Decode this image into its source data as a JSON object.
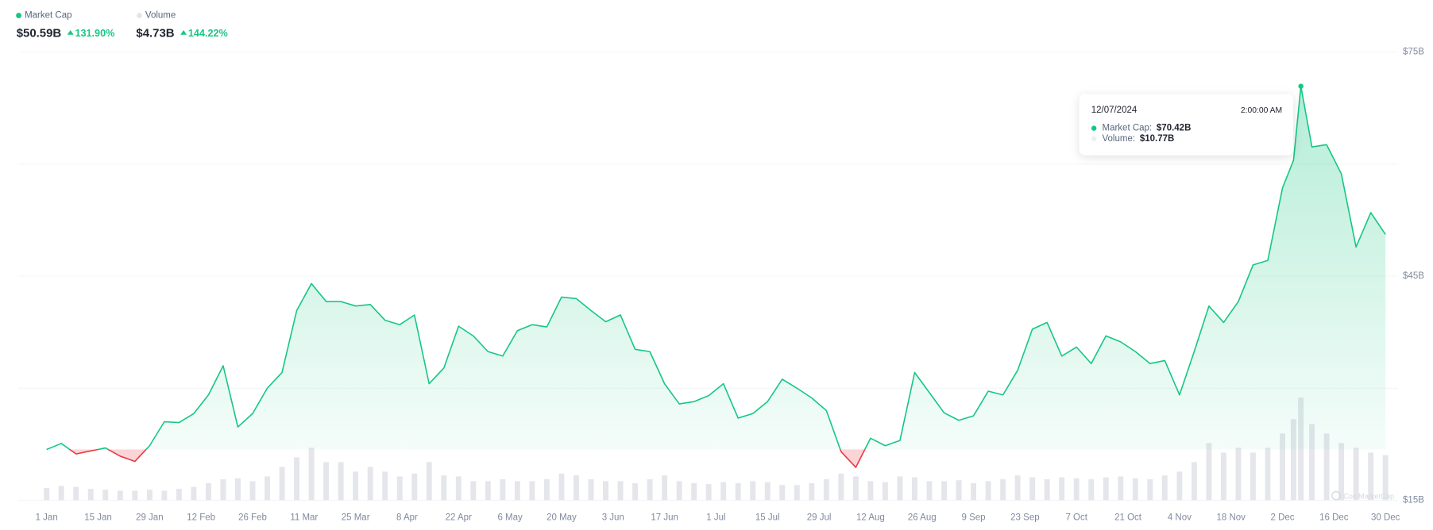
{
  "chart_data": {
    "type": "line",
    "summary": [
      {
        "value": "$50.59B",
        "change": "131.90%"
      },
      {
        "value": "$4.73B",
        "change": "144.22%"
      }
    ],
    "x": [
      "2024-01-01",
      "2024-01-05",
      "2024-01-09",
      "2024-01-13",
      "2024-01-17",
      "2024-01-21",
      "2024-01-25",
      "2024-01-29",
      "2024-02-02",
      "2024-02-06",
      "2024-02-10",
      "2024-02-14",
      "2024-02-18",
      "2024-02-22",
      "2024-02-26",
      "2024-03-01",
      "2024-03-05",
      "2024-03-09",
      "2024-03-13",
      "2024-03-17",
      "2024-03-21",
      "2024-03-25",
      "2024-03-29",
      "2024-04-02",
      "2024-04-06",
      "2024-04-10",
      "2024-04-14",
      "2024-04-18",
      "2024-04-22",
      "2024-04-26",
      "2024-04-30",
      "2024-05-04",
      "2024-05-08",
      "2024-05-12",
      "2024-05-16",
      "2024-05-20",
      "2024-05-24",
      "2024-05-28",
      "2024-06-01",
      "2024-06-05",
      "2024-06-09",
      "2024-06-13",
      "2024-06-17",
      "2024-06-21",
      "2024-06-25",
      "2024-06-29",
      "2024-07-03",
      "2024-07-07",
      "2024-07-11",
      "2024-07-15",
      "2024-07-19",
      "2024-07-23",
      "2024-07-27",
      "2024-07-31",
      "2024-08-04",
      "2024-08-08",
      "2024-08-12",
      "2024-08-16",
      "2024-08-20",
      "2024-08-24",
      "2024-08-28",
      "2024-09-01",
      "2024-09-05",
      "2024-09-09",
      "2024-09-13",
      "2024-09-17",
      "2024-09-21",
      "2024-09-25",
      "2024-09-29",
      "2024-10-03",
      "2024-10-07",
      "2024-10-11",
      "2024-10-15",
      "2024-10-19",
      "2024-10-23",
      "2024-10-27",
      "2024-10-31",
      "2024-11-04",
      "2024-11-08",
      "2024-11-12",
      "2024-11-16",
      "2024-11-20",
      "2024-11-24",
      "2024-11-28",
      "2024-12-02",
      "2024-12-05",
      "2024-12-07",
      "2024-12-10",
      "2024-12-14",
      "2024-12-18",
      "2024-12-22",
      "2024-12-26",
      "2024-12-30"
    ],
    "series": [
      {
        "name": "Market Cap",
        "color": "#16c784",
        "below_color": "#ea3943",
        "values": [
          21.8,
          22.6,
          21.2,
          21.6,
          22.0,
          20.9,
          20.2,
          22.3,
          25.5,
          25.4,
          26.6,
          29.1,
          33.0,
          24.8,
          26.6,
          30.0,
          32.1,
          40.4,
          44.0,
          41.6,
          41.6,
          41.0,
          41.2,
          39.1,
          38.5,
          39.8,
          30.6,
          32.7,
          38.3,
          37.0,
          34.9,
          34.3,
          37.7,
          38.5,
          38.2,
          42.2,
          42.0,
          40.4,
          38.9,
          39.8,
          35.2,
          34.9,
          30.6,
          27.9,
          28.2,
          29.0,
          30.6,
          26.0,
          26.6,
          28.2,
          31.2,
          30.0,
          28.7,
          27.0,
          21.5,
          19.4,
          23.3,
          22.3,
          23.0,
          32.1,
          29.4,
          26.7,
          25.7,
          26.3,
          29.6,
          29.1,
          32.4,
          37.9,
          38.8,
          34.3,
          35.5,
          33.3,
          37.0,
          36.2,
          34.9,
          33.3,
          33.7,
          29.1,
          34.9,
          41.0,
          38.8,
          41.6,
          46.5,
          47.1,
          56.8,
          60.5,
          70.42,
          62.3,
          62.6,
          58.7,
          48.9,
          53.5,
          50.59
        ]
      },
      {
        "name": "Volume",
        "color": "#e4e6eb",
        "values": [
          1.3,
          1.5,
          1.4,
          1.2,
          1.1,
          1.0,
          1.0,
          1.1,
          1.0,
          1.2,
          1.4,
          1.8,
          2.2,
          2.3,
          2.0,
          2.5,
          3.5,
          4.5,
          5.5,
          4.0,
          4.0,
          3.0,
          3.5,
          3.0,
          2.5,
          2.8,
          4.0,
          2.6,
          2.5,
          2.0,
          2.0,
          2.2,
          2.0,
          2.0,
          2.2,
          2.8,
          2.6,
          2.2,
          2.0,
          2.0,
          1.8,
          2.2,
          2.6,
          2.0,
          1.8,
          1.7,
          1.9,
          1.8,
          2.0,
          1.9,
          1.6,
          1.6,
          1.8,
          2.2,
          2.8,
          2.5,
          2.0,
          1.9,
          2.5,
          2.4,
          2.0,
          2.0,
          2.1,
          1.8,
          2.0,
          2.2,
          2.6,
          2.4,
          2.2,
          2.4,
          2.3,
          2.2,
          2.4,
          2.5,
          2.3,
          2.2,
          2.6,
          3.0,
          4.0,
          6.0,
          5.0,
          5.5,
          5.0,
          5.5,
          7.0,
          8.5,
          10.77,
          8.0,
          7.0,
          6.0,
          5.5,
          5.0,
          4.73
        ]
      }
    ],
    "xlim": [
      "2024-01-01",
      "2024-12-30"
    ],
    "xticks": [
      {
        "value": "2024-01-01",
        "label": "1 Jan"
      },
      {
        "value": "2024-01-15",
        "label": "15 Jan"
      },
      {
        "value": "2024-01-29",
        "label": "29 Jan"
      },
      {
        "value": "2024-02-12",
        "label": "12 Feb"
      },
      {
        "value": "2024-02-26",
        "label": "26 Feb"
      },
      {
        "value": "2024-03-11",
        "label": "11 Mar"
      },
      {
        "value": "2024-03-25",
        "label": "25 Mar"
      },
      {
        "value": "2024-04-08",
        "label": "8 Apr"
      },
      {
        "value": "2024-04-22",
        "label": "22 Apr"
      },
      {
        "value": "2024-05-06",
        "label": "6 May"
      },
      {
        "value": "2024-05-20",
        "label": "20 May"
      },
      {
        "value": "2024-06-03",
        "label": "3 Jun"
      },
      {
        "value": "2024-06-17",
        "label": "17 Jun"
      },
      {
        "value": "2024-07-01",
        "label": "1 Jul"
      },
      {
        "value": "2024-07-15",
        "label": "15 Jul"
      },
      {
        "value": "2024-07-29",
        "label": "29 Jul"
      },
      {
        "value": "2024-08-12",
        "label": "12 Aug"
      },
      {
        "value": "2024-08-26",
        "label": "26 Aug"
      },
      {
        "value": "2024-09-09",
        "label": "9 Sep"
      },
      {
        "value": "2024-09-23",
        "label": "23 Sep"
      },
      {
        "value": "2024-10-07",
        "label": "7 Oct"
      },
      {
        "value": "2024-10-21",
        "label": "21 Oct"
      },
      {
        "value": "2024-11-04",
        "label": "4 Nov"
      },
      {
        "value": "2024-11-18",
        "label": "18 Nov"
      },
      {
        "value": "2024-12-02",
        "label": "2 Dec"
      },
      {
        "value": "2024-12-16",
        "label": "16 Dec"
      },
      {
        "value": "2024-12-30",
        "label": "30 Dec"
      }
    ],
    "ylim": [
      15,
      75
    ],
    "yticks": [
      {
        "value": 75,
        "label": "$75B"
      },
      {
        "value": 45,
        "label": "$45B"
      },
      {
        "value": 15,
        "label": "$15B"
      }
    ],
    "yminor": [
      30,
      60
    ],
    "grid": true,
    "volume_ylim": [
      0,
      47
    ],
    "tooltip": {
      "date": "12/07/2024",
      "time": "2:00:00 AM",
      "rows": [
        {
          "label": "Market Cap:",
          "value": "$70.42B"
        },
        {
          "label": "Volume:",
          "value": "$10.77B"
        }
      ]
    },
    "watermark": "CoinMarketCap"
  }
}
